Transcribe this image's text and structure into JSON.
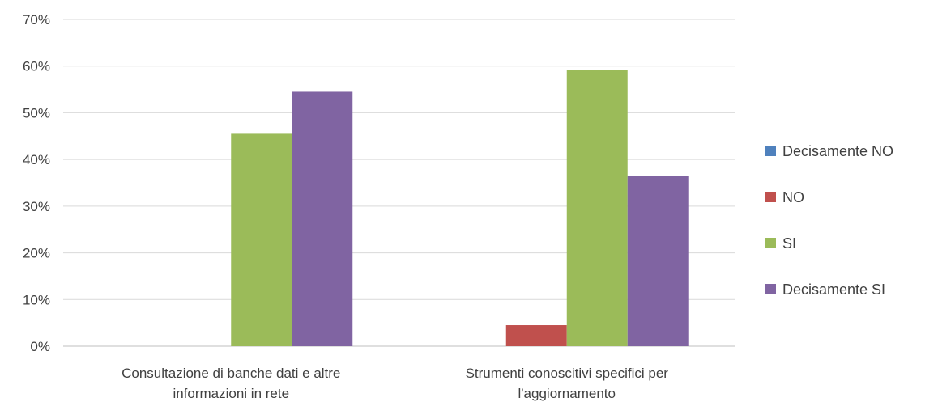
{
  "chart_data": {
    "type": "bar",
    "categories": [
      [
        "Consultazione di banche dati e altre",
        "informazioni in rete"
      ],
      [
        "Strumenti conoscitivi specifici per",
        "l'aggiornamento"
      ]
    ],
    "series": [
      {
        "name": "Decisamente NO",
        "color": "#4F81BD",
        "values": [
          0,
          0
        ]
      },
      {
        "name": "NO",
        "color": "#C0504D",
        "values": [
          0,
          4.5
        ]
      },
      {
        "name": "SI",
        "color": "#9BBB59",
        "values": [
          45.5,
          59.1
        ]
      },
      {
        "name": "Decisamente SI",
        "color": "#8064A2",
        "values": [
          54.5,
          36.4
        ]
      }
    ],
    "y_ticks": [
      "0%",
      "10%",
      "20%",
      "30%",
      "40%",
      "50%",
      "60%",
      "70%"
    ],
    "ylim": [
      0,
      70
    ],
    "grid": true,
    "legend_position": "right"
  }
}
